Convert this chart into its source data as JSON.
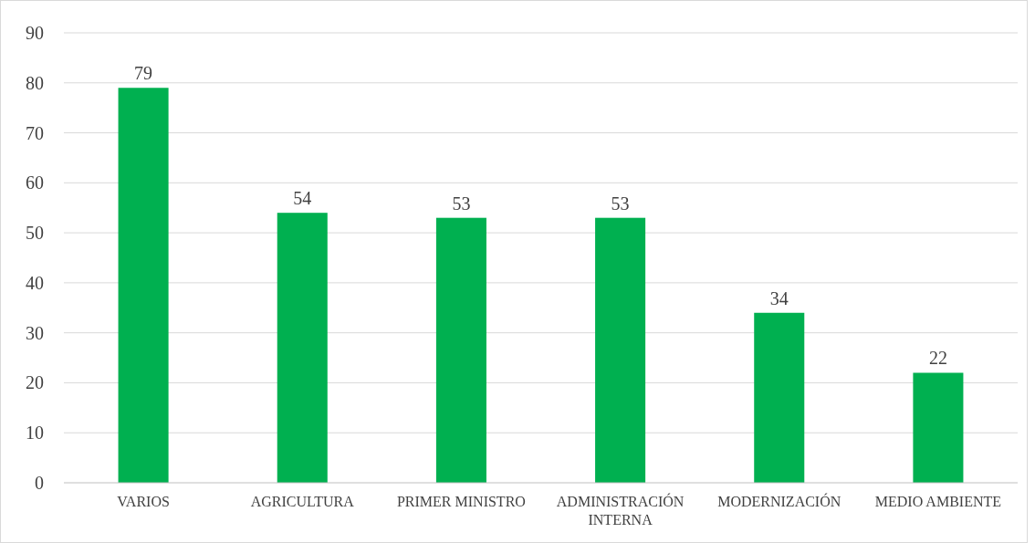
{
  "chart_data": {
    "type": "bar",
    "categories": [
      "VARIOS",
      "AGRICULTURA",
      "PRIMER MINISTRO",
      "ADMINISTRACIÓN INTERNA",
      "MODERNIZACIÓN",
      "MEDIO AMBIENTE"
    ],
    "values": [
      79,
      54,
      53,
      53,
      34,
      22
    ],
    "color": "#00b050",
    "ylim": [
      0,
      90
    ],
    "yticks": [
      0,
      10,
      20,
      30,
      40,
      50,
      60,
      70,
      80,
      90
    ],
    "grid": "y",
    "data_labels": true
  }
}
